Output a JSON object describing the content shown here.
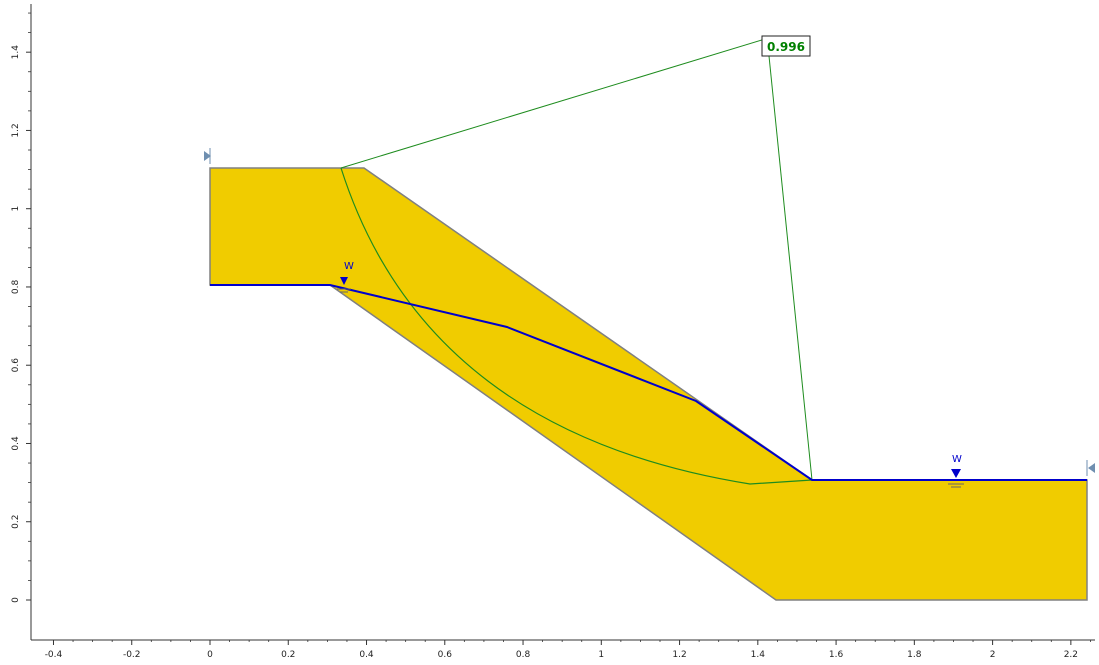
{
  "fos_label": "0.996",
  "water_label_left": "W",
  "water_label_right": "W",
  "x_ticks": [
    "-0.4",
    "-0.2",
    "0",
    "0.2",
    "0.4",
    "0.6",
    "0.8",
    "1",
    "1.2",
    "1.4",
    "1.6",
    "1.8",
    "2",
    "2.2"
  ],
  "y_ticks": [
    "0",
    "0.2",
    "0.4",
    "0.6",
    "0.8",
    "1",
    "1.2",
    "1.4"
  ],
  "colors": {
    "soil": "#F0CC00",
    "soil_edge": "#808080",
    "water": "#0000CC",
    "slip": "#1E8C1E",
    "fos_text": "#008000",
    "marker": "#6F8FB0",
    "axis": "#333333"
  }
}
